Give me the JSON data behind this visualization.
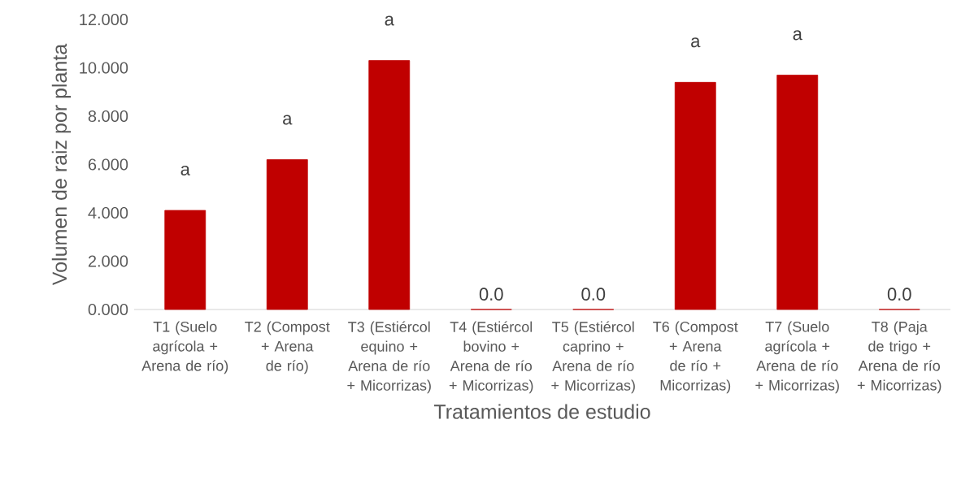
{
  "chart_data": {
    "type": "bar",
    "xlabel": "Tratamientos de estudio",
    "ylabel": "Volumen de raiz por planta",
    "categories": [
      "T1 (Suelo agrícola + Arena de río)",
      "T2 (Compost + Arena de río)",
      "T3 (Estiércol equino + Arena de río + Micorrizas)",
      "T4 (Estiércol bovino + Arena de río + Micorrizas)",
      "T5 (Estiércol caprino + Arena de río + Micorrizas)",
      "T6 (Compost + Arena de río + Micorrizas)",
      "T7 (Suelo agrícola + Arena de río + Micorrizas)",
      "T8 (Paja de trigo + Arena de río + Micorrizas)"
    ],
    "values": [
      4.1,
      6.2,
      10.3,
      0,
      0,
      9.4,
      9.7,
      0
    ],
    "value_labels": [
      "a",
      "a",
      "a",
      "0.0",
      "0.0",
      "a",
      "a",
      "0.0"
    ],
    "color": "#c00000",
    "ylim": [
      0,
      12
    ],
    "yticks": [
      {
        "value": 0,
        "label": "0.000"
      },
      {
        "value": 2,
        "label": "2.000"
      },
      {
        "value": 4,
        "label": "4.000"
      },
      {
        "value": 6,
        "label": "6.000"
      },
      {
        "value": 8,
        "label": "8.000"
      },
      {
        "value": 10,
        "label": "10.000"
      },
      {
        "value": 12,
        "label": "12.000"
      }
    ],
    "grid": false
  }
}
